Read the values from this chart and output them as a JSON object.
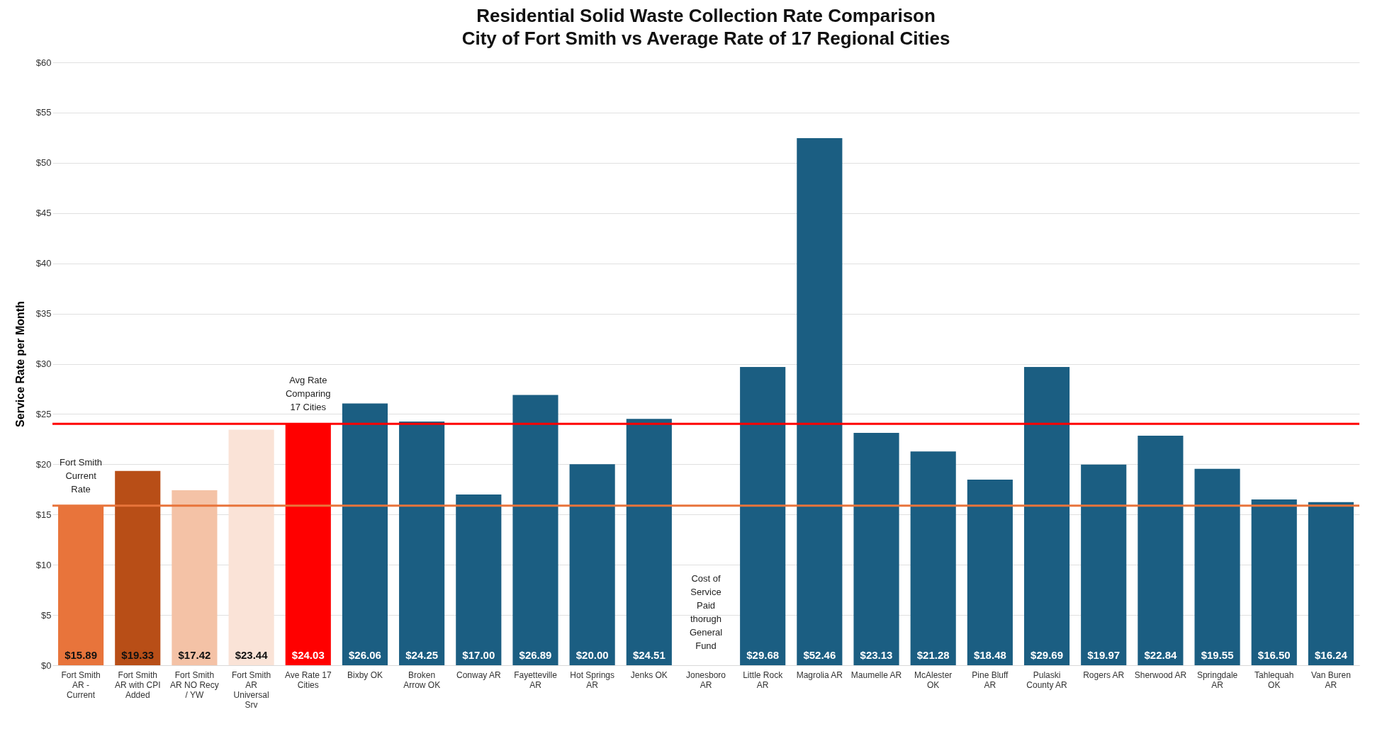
{
  "chart_data": {
    "type": "bar",
    "title": "Residential Solid Waste Collection Rate Comparison",
    "subtitle": "City of Fort Smith vs Average Rate of 17 Regional Cities",
    "ylabel": "Service Rate per Month",
    "categories": [
      "Fort Smith AR - Current",
      "Fort Smith AR with CPI Added",
      "Fort Smith AR NO Recy / YW",
      "Fort Smith AR Universal Srv",
      "Ave Rate 17 Cities",
      "Bixby OK",
      "Broken Arrow OK",
      "Conway AR",
      "Fayetteville AR",
      "Hot Springs AR",
      "Jenks OK",
      "Jonesboro AR",
      "Little Rock AR",
      "Magrolia AR",
      "Maumelle AR",
      "McAlester OK",
      "Pine Bluff AR",
      "Pulaski County AR",
      "Rogers AR",
      "Sherwood AR",
      "Springdale AR",
      "Tahlequah OK",
      "Van Buren AR"
    ],
    "values": [
      15.89,
      19.33,
      17.42,
      23.44,
      24.03,
      26.06,
      24.25,
      17.0,
      26.89,
      20.0,
      24.51,
      null,
      29.68,
      52.46,
      23.13,
      21.28,
      18.48,
      29.69,
      19.97,
      22.84,
      19.55,
      16.5,
      16.24
    ],
    "value_labels": [
      "$15.89",
      "$19.33",
      "$17.42",
      "$23.44",
      "$24.03",
      "$26.06",
      "$24.25",
      "$17.00",
      "$26.89",
      "$20.00",
      "$24.51",
      null,
      "$29.68",
      "$52.46",
      "$23.13",
      "$21.28",
      "$18.48",
      "$29.69",
      "$19.97",
      "$22.84",
      "$19.55",
      "$16.50",
      "$16.24"
    ],
    "colors": [
      "#e8743b",
      "#b84e17",
      "#f4c2a6",
      "#fae3d7",
      "#ff0000",
      "#1b5e82",
      "#1b5e82",
      "#1b5e82",
      "#1b5e82",
      "#1b5e82",
      "#1b5e82",
      "#1b5e82",
      "#1b5e82",
      "#1b5e82",
      "#1b5e82",
      "#1b5e82",
      "#1b5e82",
      "#1b5e82",
      "#1b5e82",
      "#1b5e82",
      "#1b5e82",
      "#1b5e82",
      "#1b5e82"
    ],
    "ylim": [
      0,
      60
    ],
    "yticks": [
      {
        "value": 0,
        "label": "$0"
      },
      {
        "value": 5,
        "label": "$5"
      },
      {
        "value": 10,
        "label": "$10"
      },
      {
        "value": 15,
        "label": "$15"
      },
      {
        "value": 20,
        "label": "$20"
      },
      {
        "value": 25,
        "label": "$25"
      },
      {
        "value": 30,
        "label": "$30"
      },
      {
        "value": 35,
        "label": "$35"
      },
      {
        "value": 40,
        "label": "$40"
      },
      {
        "value": 45,
        "label": "$45"
      },
      {
        "value": 50,
        "label": "$50"
      },
      {
        "value": 55,
        "label": "$55"
      },
      {
        "value": 60,
        "label": "$60"
      }
    ],
    "grid": "y",
    "ref_lines": [
      {
        "axis": "y",
        "value": 24.03,
        "color": "#ff0000"
      },
      {
        "axis": "y",
        "value": 15.89,
        "color": "#e8743b"
      }
    ],
    "annotations": [
      {
        "text": "Fort Smith Current Rate",
        "x": "Fort Smith AR - Current",
        "y": 15.89
      },
      {
        "text": "Avg Rate Comparing 17 Cities",
        "x": "Ave Rate 17 Cities",
        "y": 24.03
      },
      "Cost of Service Paid thorugh General Fund"
    ]
  }
}
